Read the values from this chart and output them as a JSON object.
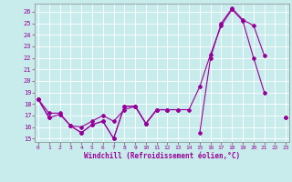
{
  "xlabel": "Windchill (Refroidissement éolien,°C)",
  "bg_color": "#c8ebeb",
  "line_color": "#990099",
  "x_values": [
    0,
    1,
    2,
    3,
    4,
    5,
    6,
    7,
    8,
    9,
    10,
    11,
    12,
    13,
    14,
    15,
    16,
    17,
    18,
    19,
    20,
    21,
    22,
    23
  ],
  "series1": [
    18.4,
    16.8,
    17.1,
    16.1,
    15.5,
    16.2,
    16.5,
    15.0,
    17.8,
    17.8,
    16.3,
    17.5,
    17.5,
    17.5,
    17.5,
    19.5,
    22.3,
    24.8,
    26.2,
    25.2,
    22.0,
    19.0,
    null,
    16.8
  ],
  "series2": [
    18.4,
    null,
    null,
    null,
    null,
    null,
    null,
    null,
    null,
    null,
    null,
    null,
    null,
    null,
    null,
    15.5,
    22.0,
    25.0,
    26.3,
    25.3,
    24.8,
    22.2,
    null,
    null
  ],
  "series3": [
    18.4,
    17.2,
    17.2,
    16.1,
    16.0,
    16.5,
    17.0,
    16.5,
    17.5,
    17.8,
    16.3,
    17.5,
    17.5,
    17.5,
    null,
    null,
    null,
    null,
    null,
    null,
    null,
    null,
    null,
    16.8
  ],
  "series4": [
    18.4,
    16.8,
    null,
    16.1,
    15.5,
    16.2,
    16.5,
    15.0,
    17.8,
    17.8,
    16.3,
    17.5,
    17.5,
    null,
    null,
    null,
    null,
    null,
    null,
    null,
    null,
    null,
    null,
    null
  ],
  "xlim": [
    0,
    23
  ],
  "ylim": [
    15,
    26.5
  ],
  "yticks": [
    15,
    16,
    17,
    18,
    19,
    20,
    21,
    22,
    23,
    24,
    25,
    26
  ],
  "xticks": [
    0,
    1,
    2,
    3,
    4,
    5,
    6,
    7,
    8,
    9,
    10,
    11,
    12,
    13,
    14,
    15,
    16,
    17,
    18,
    19,
    20,
    21,
    22,
    23
  ]
}
